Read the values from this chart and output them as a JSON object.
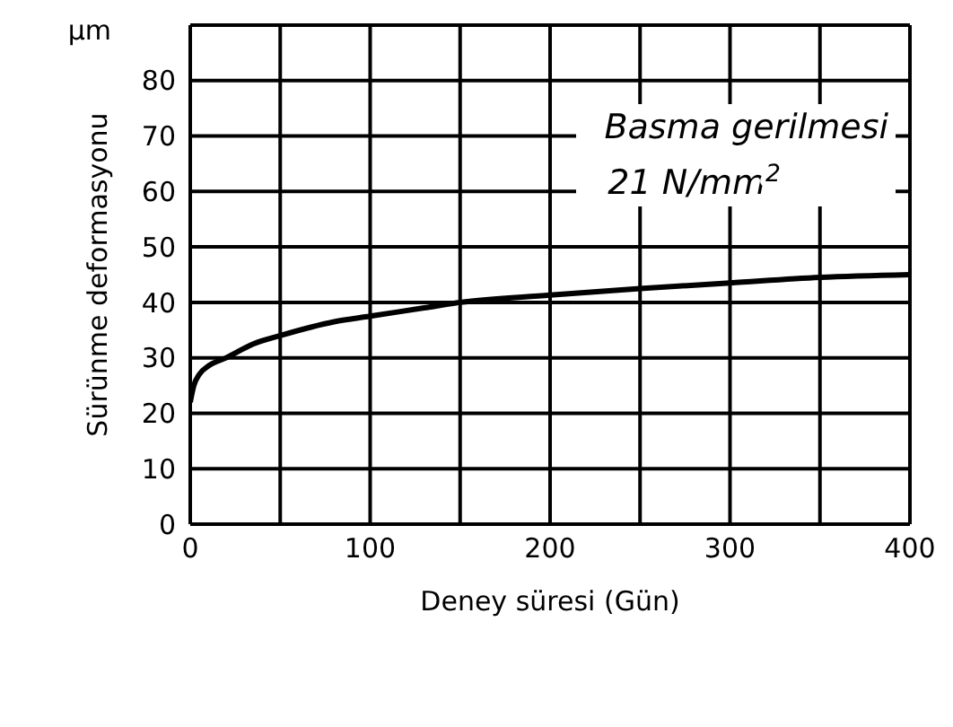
{
  "chart_data": {
    "type": "line",
    "xlabel": "Deney süresi (Gün)",
    "ylabel": "Sürünme deformasyonu",
    "annotations": [
      "μm",
      "Basma gerilmesi",
      "21 N/mm$^{2}$"
    ],
    "x": [
      0,
      2,
      5,
      10,
      20,
      35,
      50,
      80,
      100,
      130,
      150,
      200,
      250,
      300,
      350,
      400
    ],
    "series": [
      {
        "color": "#000000",
        "values": [
          22,
          25,
          27,
          28.5,
          30,
          32.5,
          34,
          36.5,
          37.5,
          39,
          40,
          41.3,
          42.5,
          43.5,
          44.5,
          45
        ]
      }
    ],
    "xlim": [
      0,
      400
    ],
    "xticks": [
      0,
      {
        "value": 50,
        "label": null
      },
      100,
      {
        "value": 150,
        "label": null
      },
      200,
      {
        "value": 250,
        "label": null
      },
      300,
      {
        "value": 350,
        "label": null
      },
      400
    ],
    "ylim": [
      0,
      90
    ],
    "yticks": [
      0,
      10,
      20,
      30,
      40,
      50,
      60,
      70,
      80,
      {
        "value": 90,
        "label": null
      }
    ],
    "grid": true,
    "marker": "none",
    "line_style": "solid",
    "legend": false
  }
}
